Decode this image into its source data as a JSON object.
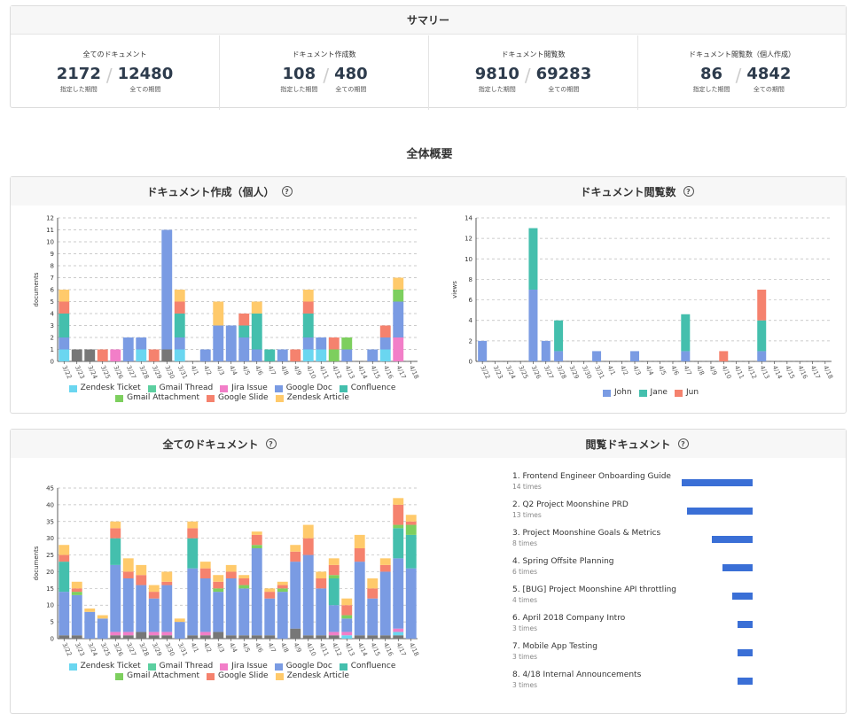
{
  "summary": {
    "title": "サマリー",
    "cells": [
      {
        "title": "全てのドキュメント",
        "a": "2172",
        "a_sub": "指定した期間",
        "b": "12480",
        "b_sub": "全ての期間"
      },
      {
        "title": "ドキュメント作成数",
        "a": "108",
        "a_sub": "指定した期間",
        "b": "480",
        "b_sub": "全ての期間"
      },
      {
        "title": "ドキュメント閲覧数",
        "a": "9810",
        "a_sub": "指定した期間",
        "b": "69283",
        "b_sub": "全ての期間"
      },
      {
        "title": "ドキュメント閲覧数（個人作成）",
        "a": "86",
        "a_sub": "指定した期間",
        "b": "4842",
        "b_sub": "全ての期間"
      }
    ]
  },
  "overview_title": "全体概要",
  "panels": {
    "created_title": "ドキュメント作成（個人）",
    "views_title": "ドキュメント閲覧数",
    "all_title": "全てのドキュメント",
    "viewed_title": "閲覧ドキュメント",
    "help_glyph": "?"
  },
  "chart_data": [
    {
      "type": "bar",
      "stacked": true,
      "ylabel": "documents",
      "ylim": [
        0,
        12
      ],
      "categories": [
        "3/22",
        "3/23",
        "3/24",
        "3/25",
        "3/26",
        "3/27",
        "3/28",
        "3/29",
        "3/30",
        "3/31",
        "4/1",
        "4/2",
        "4/3",
        "4/4",
        "4/5",
        "4/6",
        "4/7",
        "4/8",
        "4/9",
        "4/10",
        "4/11",
        "4/12",
        "4/13",
        "4/14",
        "4/15",
        "4/16",
        "4/17",
        "4/18"
      ],
      "series": [
        {
          "name": "Zendesk Ticket",
          "color": "#6ad6f0",
          "values": [
            1,
            0,
            0,
            0,
            0,
            0,
            1,
            0,
            0,
            1,
            0,
            0,
            0,
            0,
            0,
            0,
            0,
            0,
            0,
            1,
            1,
            0,
            0,
            0,
            0,
            1,
            0,
            0
          ]
        },
        {
          "name": "Gmail Thread",
          "color": "#5ccfa0",
          "values": [
            0,
            0,
            0,
            0,
            0,
            0,
            0,
            0,
            0,
            0,
            0,
            0,
            0,
            0,
            0,
            0,
            0,
            0,
            0,
            0,
            0,
            0,
            0,
            0,
            0,
            0,
            0,
            0
          ]
        },
        {
          "name": "Jira Issue",
          "color": "#f27ec8",
          "values": [
            0,
            0,
            0,
            0,
            1,
            0,
            0,
            0,
            0,
            0,
            0,
            0,
            0,
            0,
            0,
            0,
            0,
            0,
            0,
            0,
            0,
            0,
            0,
            0,
            0,
            0,
            2,
            0
          ]
        },
        {
          "name": "Google Doc",
          "color": "#7a9be3",
          "values": [
            1,
            0,
            0,
            0,
            0,
            2,
            1,
            0,
            10,
            1,
            0,
            1,
            3,
            3,
            2,
            1,
            0,
            1,
            0,
            1,
            1,
            0,
            1,
            0,
            1,
            1,
            3,
            0
          ]
        },
        {
          "name": "Confluence",
          "color": "#44bfad",
          "values": [
            2,
            0,
            0,
            0,
            0,
            0,
            0,
            0,
            0,
            2,
            0,
            0,
            0,
            0,
            1,
            3,
            1,
            0,
            0,
            2,
            0,
            0,
            0,
            0,
            0,
            0,
            0,
            0
          ]
        },
        {
          "name": "Gmail Attachment",
          "color": "#7dcf5e",
          "values": [
            0,
            0,
            0,
            0,
            0,
            0,
            0,
            0,
            0,
            0,
            0,
            0,
            0,
            0,
            0,
            0,
            0,
            0,
            0,
            0,
            0,
            1,
            1,
            0,
            0,
            0,
            1,
            0
          ]
        },
        {
          "name": "Google Slide",
          "color": "#f5826e",
          "values": [
            1,
            0,
            0,
            1,
            0,
            0,
            0,
            1,
            0,
            1,
            0,
            0,
            0,
            0,
            1,
            0,
            0,
            0,
            1,
            1,
            0,
            1,
            0,
            0,
            0,
            1,
            0,
            0
          ]
        },
        {
          "name": "Zendesk Article",
          "color": "#ffca6b",
          "values": [
            1,
            0,
            0,
            0,
            0,
            0,
            0,
            0,
            0,
            1,
            0,
            0,
            2,
            0,
            0,
            1,
            0,
            0,
            0,
            1,
            0,
            0,
            0,
            0,
            0,
            0,
            1,
            0
          ]
        }
      ],
      "gray": [
        0,
        1,
        1,
        0,
        0,
        0,
        0,
        0,
        1,
        0,
        0,
        0,
        0,
        0,
        0,
        0,
        0,
        0,
        0,
        0,
        0,
        0,
        0,
        0,
        0,
        0,
        0,
        0
      ]
    },
    {
      "type": "bar",
      "stacked": true,
      "ylabel": "views",
      "ylim": [
        0,
        14
      ],
      "categories": [
        "3/22",
        "3/23",
        "3/24",
        "3/25",
        "3/26",
        "3/27",
        "3/28",
        "3/29",
        "3/30",
        "3/31",
        "4/1",
        "4/2",
        "4/3",
        "4/4",
        "4/5",
        "4/6",
        "4/7",
        "4/8",
        "4/9",
        "4/10",
        "4/11",
        "4/12",
        "4/13",
        "4/14",
        "4/15",
        "4/16",
        "4/17",
        "4/18"
      ],
      "series": [
        {
          "name": "John",
          "color": "#7a9be3",
          "values": [
            2,
            0,
            0,
            0,
            7,
            2,
            1,
            0,
            0,
            1,
            0,
            0,
            1,
            0,
            0,
            0,
            1,
            0,
            0,
            0,
            0,
            0,
            1,
            0,
            0,
            0,
            0,
            0
          ]
        },
        {
          "name": "Jane",
          "color": "#44bfad",
          "values": [
            0,
            0,
            0,
            0,
            6,
            0,
            3,
            0,
            0,
            0,
            0,
            0,
            0,
            0,
            0,
            0,
            3.6,
            0,
            0,
            0,
            0,
            0,
            3,
            0,
            0,
            0,
            0,
            0
          ]
        },
        {
          "name": "Jun",
          "color": "#f5826e",
          "values": [
            0,
            0,
            0,
            0,
            0,
            0,
            0,
            0,
            0,
            0,
            0,
            0,
            0,
            0,
            0,
            0,
            0,
            0,
            0,
            1,
            0,
            0,
            3,
            0,
            0,
            0,
            0,
            0
          ]
        }
      ]
    },
    {
      "type": "bar",
      "stacked": true,
      "ylabel": "documents",
      "ylim": [
        0,
        45
      ],
      "categories": [
        "3/22",
        "3/23",
        "3/24",
        "3/25",
        "3/26",
        "3/27",
        "3/28",
        "3/29",
        "3/30",
        "3/31",
        "4/1",
        "4/2",
        "4/3",
        "4/4",
        "4/5",
        "4/6",
        "4/7",
        "4/8",
        "4/9",
        "4/10",
        "4/11",
        "4/12",
        "4/13",
        "4/14",
        "4/15",
        "4/16",
        "4/17",
        "4/18"
      ],
      "series": [
        {
          "name": "Zendesk Ticket",
          "color": "#6ad6f0",
          "values": [
            0,
            0,
            0,
            0,
            0,
            0,
            0,
            0,
            0,
            0,
            0,
            0,
            0,
            0,
            0,
            0,
            0,
            0,
            0,
            0,
            0,
            0,
            1,
            0,
            0,
            0,
            1,
            0
          ]
        },
        {
          "name": "Gmail Thread",
          "color": "#5ccfa0",
          "values": [
            0,
            0,
            0,
            0,
            0,
            0,
            0,
            0,
            0,
            0,
            0,
            0,
            0,
            0,
            0,
            0,
            0,
            0,
            0,
            0,
            0,
            0,
            0,
            0,
            0,
            0,
            0,
            0
          ]
        },
        {
          "name": "Jira Issue",
          "color": "#f27ec8",
          "values": [
            0,
            0,
            0,
            0,
            1,
            1,
            0,
            1,
            1,
            0,
            0,
            1,
            0,
            0,
            0,
            0,
            0,
            0,
            0,
            0,
            0,
            1,
            1,
            0,
            0,
            0,
            1,
            0
          ]
        },
        {
          "name": "Google Doc",
          "color": "#7a9be3",
          "values": [
            13,
            12,
            8,
            6,
            20,
            16,
            14,
            10,
            14,
            5,
            20,
            16,
            12,
            17,
            14,
            26,
            11,
            14,
            20,
            24,
            14,
            8,
            4,
            22,
            11,
            19,
            21,
            21
          ]
        },
        {
          "name": "Confluence",
          "color": "#44bfad",
          "values": [
            9,
            0,
            0,
            0,
            8,
            0,
            0,
            0,
            0,
            0,
            9,
            0,
            0,
            0,
            0,
            0,
            0,
            0,
            0,
            0,
            0,
            8,
            0,
            0,
            0,
            0,
            9,
            10
          ]
        },
        {
          "name": "Gmail Attachment",
          "color": "#7dcf5e",
          "values": [
            0,
            1,
            0,
            0,
            0,
            0,
            0,
            0,
            0,
            0,
            0,
            0,
            1,
            0,
            1,
            1,
            0,
            1,
            0,
            0,
            0,
            1,
            1,
            0,
            0,
            0,
            1,
            3
          ]
        },
        {
          "name": "Google Slide",
          "color": "#f5826e",
          "values": [
            2,
            1,
            0,
            0,
            3,
            2,
            3,
            2,
            1,
            0,
            3,
            3,
            2,
            2,
            2,
            3,
            2,
            1,
            3,
            5,
            3,
            3,
            3,
            4,
            3,
            2,
            6,
            1
          ]
        },
        {
          "name": "Zendesk Article",
          "color": "#ffca6b",
          "values": [
            3,
            2,
            1,
            1,
            2,
            4,
            3,
            2,
            3,
            1,
            2,
            2,
            2,
            2,
            1,
            1,
            1,
            1,
            2,
            4,
            2,
            2,
            2,
            4,
            3,
            2,
            2,
            2
          ]
        }
      ],
      "gray": [
        1,
        1,
        0,
        0,
        1,
        1,
        2,
        1,
        1,
        0,
        1,
        1,
        2,
        1,
        1,
        1,
        1,
        0,
        3,
        1,
        1,
        1,
        0,
        1,
        1,
        1,
        1,
        0
      ]
    },
    {
      "type": "bar",
      "orientation": "horizontal",
      "title": "閲覧ドキュメント",
      "items": [
        {
          "label": "1. Frontend Engineer Onboarding Guide",
          "count": "14 times",
          "value": 14
        },
        {
          "label": "2. Q2 Project Moonshine PRD",
          "count": "13 times",
          "value": 13
        },
        {
          "label": "3. Project Moonshine Goals & Metrics",
          "count": "8 times",
          "value": 8
        },
        {
          "label": "4. Spring Offsite Planning",
          "count": "6 times",
          "value": 6
        },
        {
          "label": "5. [BUG] Project Moonshine API throttling",
          "count": "4 times",
          "value": 4
        },
        {
          "label": "6. April 2018 Company Intro",
          "count": "3 times",
          "value": 3
        },
        {
          "label": "7. Mobile App Testing",
          "count": "3 times",
          "value": 3
        },
        {
          "label": "8. 4/18 Internal Announcements",
          "count": "3 times",
          "value": 3
        }
      ],
      "bar_color": "#3a6fd6"
    }
  ]
}
